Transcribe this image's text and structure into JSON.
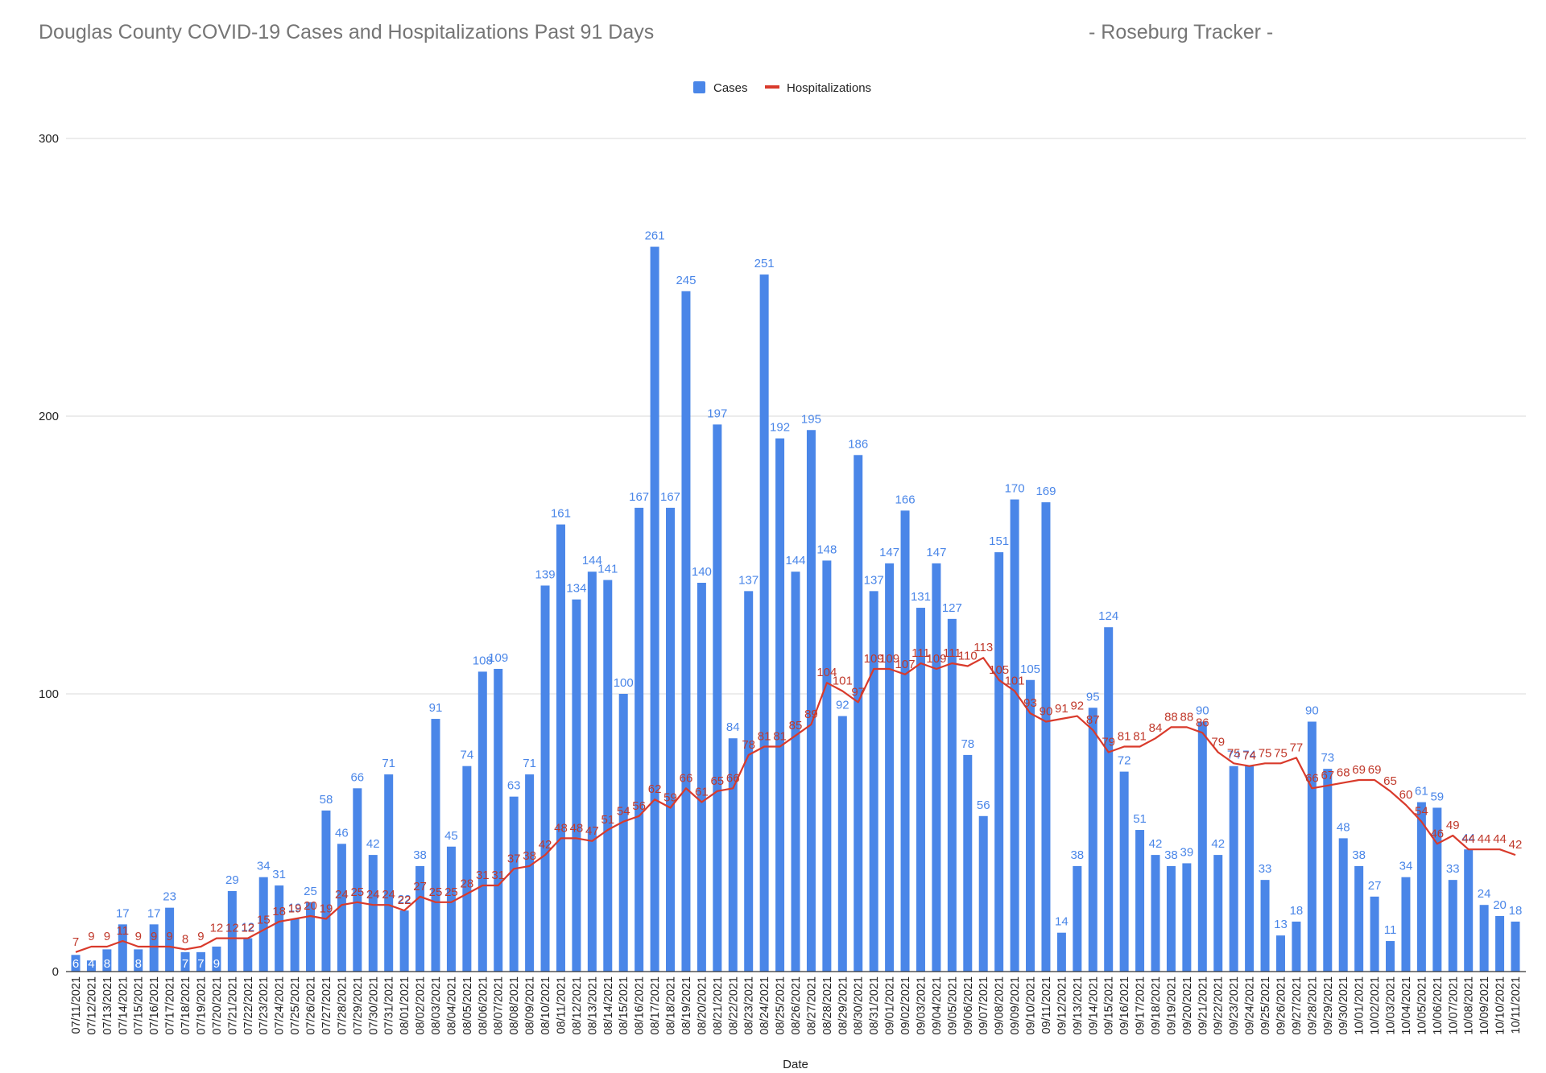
{
  "header": {
    "title": "Douglas County COVID-19 Cases and Hospitalizations Past 91 Days",
    "tracker": "- Roseburg Tracker -"
  },
  "chart_data": {
    "type": "bar",
    "xlabel": "Date",
    "ylabel": "",
    "ylim": [
      0,
      300
    ],
    "yticks": [
      0,
      100,
      200,
      300
    ],
    "grid": true,
    "legend_placement": "top-center",
    "colors": {
      "cases": "#4a86e8",
      "hospitalizations": "#d93a2b"
    },
    "categories": [
      "07/11/2021",
      "07/12/2021",
      "07/13/2021",
      "07/14/2021",
      "07/15/2021",
      "07/16/2021",
      "07/17/2021",
      "07/18/2021",
      "07/19/2021",
      "07/20/2021",
      "07/21/2021",
      "07/22/2021",
      "07/23/2021",
      "07/24/2021",
      "07/25/2021",
      "07/26/2021",
      "07/27/2021",
      "07/28/2021",
      "07/29/2021",
      "07/30/2021",
      "07/31/2021",
      "08/01/2021",
      "08/02/2021",
      "08/03/2021",
      "08/04/2021",
      "08/05/2021",
      "08/06/2021",
      "08/07/2021",
      "08/08/2021",
      "08/09/2021",
      "08/10/2021",
      "08/11/2021",
      "08/12/2021",
      "08/13/2021",
      "08/14/2021",
      "08/15/2021",
      "08/16/2021",
      "08/17/2021",
      "08/18/2021",
      "08/19/2021",
      "08/20/2021",
      "08/21/2021",
      "08/22/2021",
      "08/23/2021",
      "08/24/2021",
      "08/25/2021",
      "08/26/2021",
      "08/27/2021",
      "08/28/2021",
      "08/29/2021",
      "08/30/2021",
      "08/31/2021",
      "09/01/2021",
      "09/02/2021",
      "09/03/2021",
      "09/04/2021",
      "09/05/2021",
      "09/06/2021",
      "09/07/2021",
      "09/08/2021",
      "09/09/2021",
      "09/10/2021",
      "09/11/2021",
      "09/12/2021",
      "09/13/2021",
      "09/14/2021",
      "09/15/2021",
      "09/16/2021",
      "09/17/2021",
      "09/18/2021",
      "09/19/2021",
      "09/20/2021",
      "09/21/2021",
      "09/22/2021",
      "09/23/2021",
      "09/24/2021",
      "09/25/2021",
      "09/26/2021",
      "09/27/2021",
      "09/28/2021",
      "09/29/2021",
      "09/30/2021",
      "10/01/2021",
      "10/02/2021",
      "10/03/2021",
      "10/04/2021",
      "10/05/2021",
      "10/06/2021",
      "10/07/2021",
      "10/08/2021",
      "10/09/2021",
      "10/10/2021",
      "10/11/2021"
    ],
    "series": [
      {
        "name": "Cases",
        "type": "bar",
        "values": [
          6,
          4,
          8,
          17,
          8,
          17,
          23,
          7,
          7,
          9,
          29,
          12,
          34,
          31,
          19,
          25,
          58,
          46,
          66,
          42,
          71,
          22,
          38,
          91,
          45,
          74,
          108,
          109,
          63,
          71,
          139,
          161,
          134,
          144,
          141,
          100,
          167,
          261,
          167,
          245,
          140,
          197,
          84,
          137,
          251,
          192,
          144,
          195,
          148,
          92,
          186,
          137,
          147,
          166,
          131,
          147,
          127,
          78,
          56,
          151,
          170,
          105,
          169,
          14,
          38,
          95,
          124,
          72,
          51,
          42,
          38,
          39,
          90,
          42,
          74,
          74,
          33,
          13,
          18,
          90,
          73,
          48,
          38,
          27,
          11,
          34,
          61,
          59,
          33,
          44,
          24,
          20,
          18
        ]
      },
      {
        "name": "Hospitalizations",
        "type": "line",
        "values": [
          7,
          9,
          9,
          11,
          9,
          9,
          9,
          8,
          9,
          12,
          12,
          12,
          15,
          18,
          19,
          20,
          19,
          24,
          25,
          24,
          24,
          22,
          27,
          25,
          25,
          28,
          31,
          31,
          37,
          38,
          42,
          48,
          48,
          47,
          51,
          54,
          56,
          62,
          59,
          66,
          61,
          65,
          66,
          78,
          81,
          81,
          85,
          89,
          104,
          101,
          97,
          109,
          109,
          107,
          111,
          109,
          111,
          110,
          113,
          105,
          101,
          93,
          90,
          91,
          92,
          87,
          79,
          81,
          81,
          84,
          88,
          88,
          86,
          79,
          75,
          74,
          75,
          75,
          77,
          66,
          67,
          68,
          69,
          69,
          65,
          60,
          54,
          46,
          49,
          44,
          44,
          44,
          42
        ]
      }
    ]
  }
}
